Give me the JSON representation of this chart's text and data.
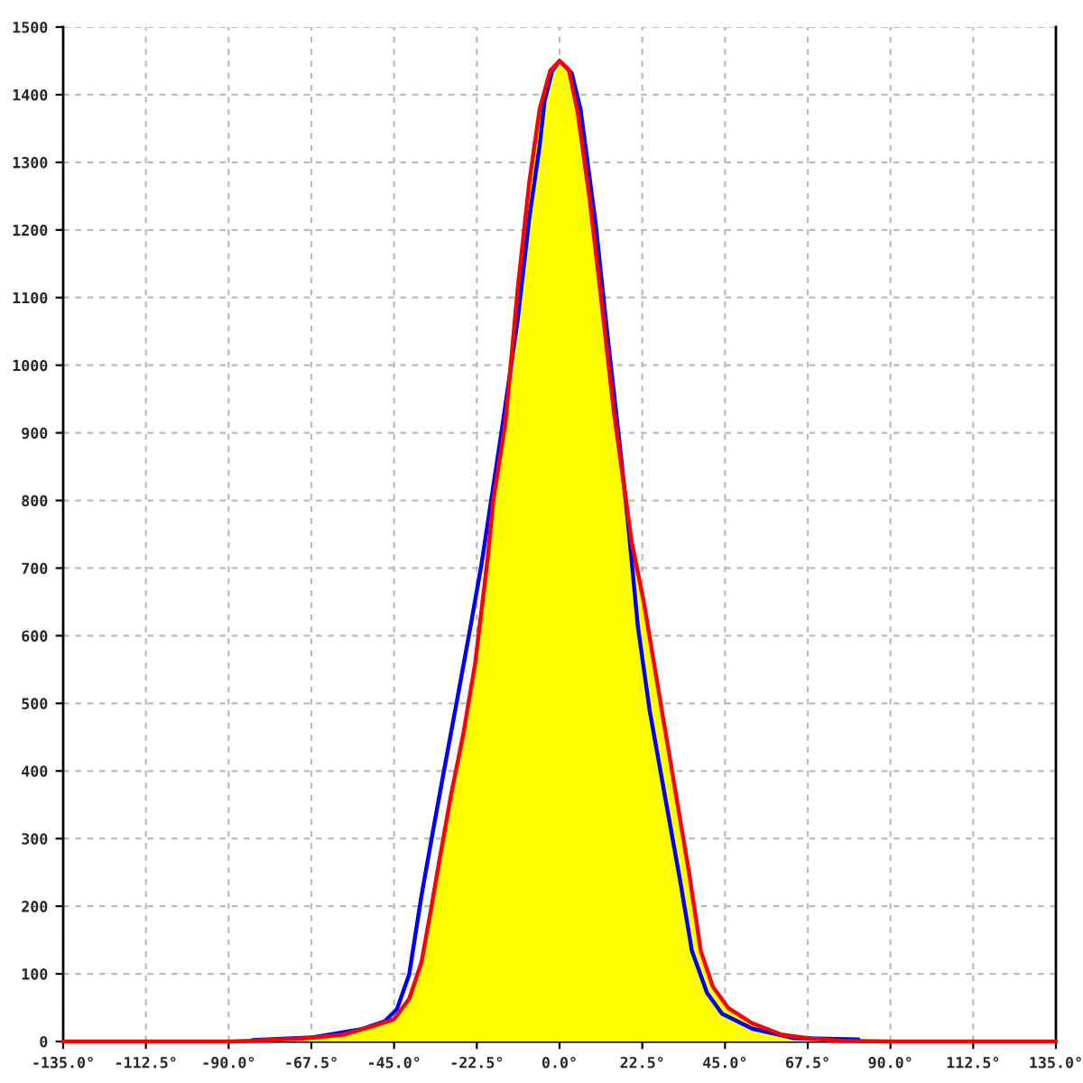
{
  "chart_data": {
    "type": "line",
    "xlim": [
      -135,
      135
    ],
    "ylim": [
      0,
      1500
    ],
    "grid": true,
    "xticks": [
      {
        "value": -135,
        "label": "-135.0°"
      },
      {
        "value": -112.5,
        "label": "-112.5°"
      },
      {
        "value": -90,
        "label": "-90.0°"
      },
      {
        "value": -67.5,
        "label": "-67.5°"
      },
      {
        "value": -45,
        "label": "-45.0°"
      },
      {
        "value": -22.5,
        "label": "-22.5°"
      },
      {
        "value": 0,
        "label": "0.0°"
      },
      {
        "value": 22.5,
        "label": "22.5°"
      },
      {
        "value": 45,
        "label": "45.0°"
      },
      {
        "value": 67.5,
        "label": "67.5°"
      },
      {
        "value": 90,
        "label": "90.0°"
      },
      {
        "value": 112.5,
        "label": "112.5°"
      },
      {
        "value": 135,
        "label": "135.0°"
      }
    ],
    "yticks": [
      0,
      100,
      200,
      300,
      400,
      500,
      600,
      700,
      800,
      900,
      1000,
      1100,
      1200,
      1300,
      1400,
      1500
    ],
    "series": [
      {
        "type": "area",
        "color": "#ffff00",
        "x": [
          -90,
          -83.5,
          -68.7,
          -58.9,
          -50.7,
          -45,
          -40.9,
          -37.6,
          -35.2,
          -32.7,
          -29.5,
          -26.2,
          -22.9,
          -19.6,
          -18,
          -14.7,
          -11.4,
          -8.2,
          -5.4,
          -2.5,
          0,
          2.5,
          4.9,
          8.2,
          11.4,
          14.7,
          19.6,
          22.9,
          27,
          31.1,
          35.2,
          38.4,
          41.7,
          45.8,
          52.4,
          60.5,
          68.7,
          76.9,
          90
        ],
        "values": [
          0,
          1,
          5,
          10,
          23,
          33,
          63,
          116,
          188,
          267,
          365,
          454,
          561,
          712,
          801,
          916,
          1112,
          1272,
          1379,
          1436,
          1450,
          1437,
          1375,
          1245,
          1094,
          934,
          739,
          650,
          516,
          383,
          250,
          134,
          81,
          50,
          27,
          10,
          4,
          1,
          0
        ]
      },
      {
        "color": "#0000ff",
        "x": [
          -83.5,
          -67.1,
          -54,
          -47.5,
          -44.2,
          -40.9,
          -37.6,
          -34.4,
          -31.1,
          -27.8,
          -24.5,
          -21.3,
          -15.6,
          -11.4,
          -8.2,
          -5.4,
          -4.1,
          -2,
          0,
          3.3,
          5.7,
          9.8,
          13.1,
          16.4,
          18.8,
          21.3,
          24.5,
          28.6,
          32.7,
          36,
          40.1,
          44.2,
          52.4,
          63.8,
          81.3
        ],
        "values": [
          2,
          6,
          18,
          30,
          48,
          99,
          214,
          312,
          410,
          507,
          605,
          703,
          908,
          1067,
          1219,
          1325,
          1390,
          1435,
          1450,
          1432,
          1379,
          1210,
          1041,
          881,
          757,
          614,
          490,
          365,
          241,
          134,
          72,
          41,
          19,
          5,
          3
        ]
      },
      {
        "color": "#ff0000",
        "x": [
          -135,
          -90,
          -83.5,
          -68.7,
          -58.9,
          -50.7,
          -45,
          -40.9,
          -37.6,
          -35.2,
          -32.7,
          -29.5,
          -26.2,
          -22.9,
          -19.6,
          -18,
          -14.7,
          -11.4,
          -8.2,
          -5.4,
          -2.5,
          0,
          2.5,
          4.9,
          8.2,
          11.4,
          14.7,
          19.6,
          22.9,
          27,
          31.1,
          35.2,
          38.4,
          41.7,
          45.8,
          52.4,
          60.5,
          68.7,
          76.9,
          90,
          135
        ],
        "values": [
          0,
          0,
          1,
          5,
          10,
          23,
          33,
          63,
          116,
          188,
          267,
          365,
          454,
          561,
          712,
          801,
          916,
          1112,
          1272,
          1379,
          1436,
          1450,
          1437,
          1375,
          1245,
          1094,
          934,
          739,
          650,
          516,
          383,
          250,
          134,
          81,
          50,
          27,
          10,
          4,
          1,
          0,
          0
        ]
      }
    ]
  }
}
